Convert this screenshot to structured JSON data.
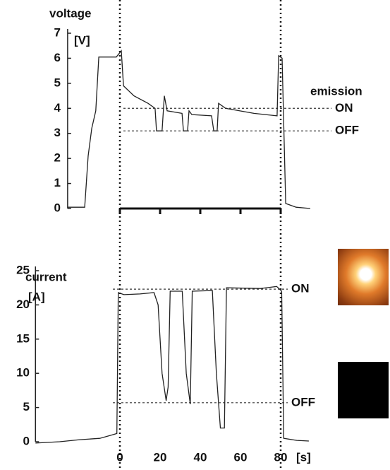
{
  "chart_data": [
    {
      "type": "line",
      "ylabel": "voltage",
      "yunit": "[V]",
      "annotation": "emission",
      "xlim": [
        -26,
        95
      ],
      "ylim": [
        0,
        7
      ],
      "yticks": [
        0,
        1,
        2,
        3,
        4,
        5,
        6,
        7
      ],
      "vlines": [
        0,
        80
      ],
      "ref_lines": [
        {
          "label": "ON",
          "value": 4.0
        },
        {
          "label": "OFF",
          "value": 3.1
        }
      ],
      "series": [
        {
          "color": "#222222",
          "x": [
            -26,
            -17.5,
            -15.8,
            -14,
            -12,
            -10.5,
            -1.8,
            0.7,
            1.8,
            7,
            14,
            17.5,
            18.2,
            21,
            22.1,
            23.5,
            30.9,
            31.6,
            33.7,
            34.4,
            35.8,
            45.6,
            46.7,
            48.4,
            49.1,
            52.6,
            66.7,
            78.2,
            79,
            80.7,
            82.5,
            87.7,
            94.7
          ],
          "values": [
            0.05,
            0.05,
            2.1,
            3.2,
            3.9,
            6.05,
            6.05,
            6.3,
            4.9,
            4.5,
            4.2,
            4.0,
            3.1,
            3.1,
            4.5,
            3.9,
            3.8,
            3.1,
            3.1,
            3.9,
            3.75,
            3.7,
            3.1,
            3.1,
            4.2,
            4.0,
            3.8,
            3.7,
            6.1,
            6.0,
            0.2,
            0.05,
            0.0
          ]
        }
      ]
    },
    {
      "type": "line",
      "ylabel": "current",
      "yunit": "[A]",
      "xunit": "[s]",
      "xlim": [
        -42,
        95
      ],
      "ylim": [
        0,
        25
      ],
      "yticks": [
        0,
        5,
        10,
        15,
        20,
        25
      ],
      "xticks": [
        0,
        20,
        40,
        60,
        80
      ],
      "ref_lines": [
        {
          "label": "ON",
          "value": 22.3
        },
        {
          "label": "OFF",
          "value": 5.7
        }
      ],
      "series": [
        {
          "color": "#222222",
          "x": [
            -42,
            -30,
            -20,
            -10,
            -5,
            -1.5,
            -0.8,
            2,
            10,
            17,
            19,
            21,
            23,
            24,
            25,
            31,
            33,
            35,
            36,
            46,
            48,
            50,
            52,
            53,
            70,
            78,
            80.5,
            81.5,
            88,
            94
          ],
          "values": [
            -0.2,
            0,
            0.3,
            0.5,
            0.9,
            1.2,
            21.8,
            21.5,
            21.6,
            21.8,
            20,
            10,
            6,
            8,
            22,
            22,
            10,
            5.5,
            22,
            22.1,
            10,
            2,
            2,
            22.5,
            22.4,
            22.7,
            22,
            0.5,
            0.2,
            0.1
          ]
        }
      ]
    }
  ]
}
